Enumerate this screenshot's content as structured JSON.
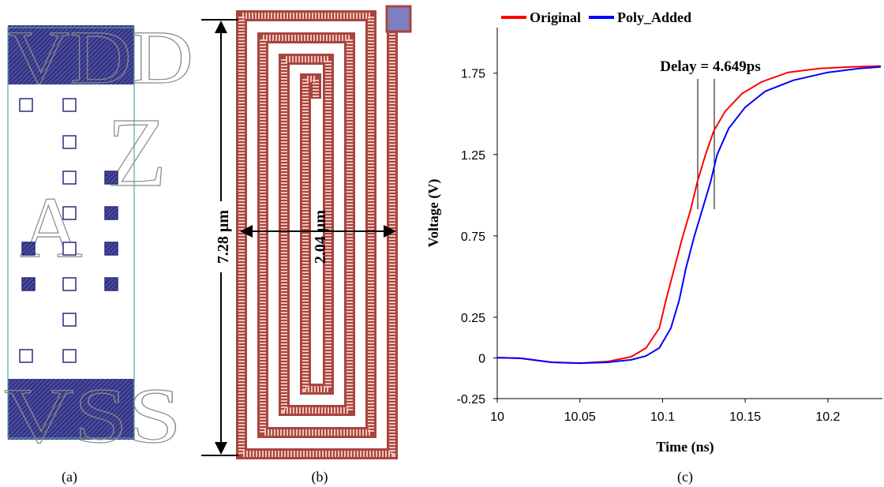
{
  "panels": {
    "a": {
      "label": "(a)",
      "texts": [
        "VDD",
        "Z",
        "A",
        "VSS"
      ]
    },
    "b": {
      "label": "(b)",
      "height": "7.28 µm",
      "width": "2.04 µm"
    }
  },
  "chart_data": {
    "type": "line",
    "caption": "(c)",
    "annotation": "Delay = 4.649ps",
    "x_label": "Time (ns)",
    "y_label": "Voltage (V)",
    "xlim": [
      10,
      10.233
    ],
    "ylim": [
      -0.25,
      2.03
    ],
    "xticks": [
      10,
      10.05,
      10.1,
      10.15,
      10.2
    ],
    "yticks": [
      -0.25,
      0,
      0.25,
      0.75,
      1.25,
      1.75
    ],
    "series": [
      {
        "name": "Original",
        "color": "#ff0000",
        "x": [
          10,
          10.014,
          10.033,
          10.05,
          10.067,
          10.081,
          10.09,
          10.098,
          10.102,
          10.107,
          10.112,
          10.117,
          10.121,
          10.126,
          10.131,
          10.138,
          10.148,
          10.16,
          10.176,
          10.195,
          10.214,
          10.232
        ],
        "values": [
          0.002,
          -0.002,
          -0.027,
          -0.032,
          -0.022,
          0.007,
          0.061,
          0.182,
          0.352,
          0.546,
          0.74,
          0.91,
          1.08,
          1.25,
          1.396,
          1.517,
          1.624,
          1.697,
          1.755,
          1.779,
          1.789,
          1.794
        ]
      },
      {
        "name": "Poly_Added",
        "color": "#0000ff",
        "x": [
          10,
          10.014,
          10.033,
          10.05,
          10.067,
          10.081,
          10.09,
          10.098,
          10.105,
          10.11,
          10.114,
          10.119,
          10.124,
          10.129,
          10.133,
          10.14,
          10.15,
          10.162,
          10.179,
          10.2,
          10.219,
          10.232
        ],
        "values": [
          0.002,
          -0.002,
          -0.027,
          -0.032,
          -0.027,
          -0.012,
          0.012,
          0.061,
          0.182,
          0.352,
          0.546,
          0.74,
          0.91,
          1.08,
          1.25,
          1.41,
          1.541,
          1.638,
          1.706,
          1.755,
          1.779,
          1.789
        ]
      }
    ]
  }
}
